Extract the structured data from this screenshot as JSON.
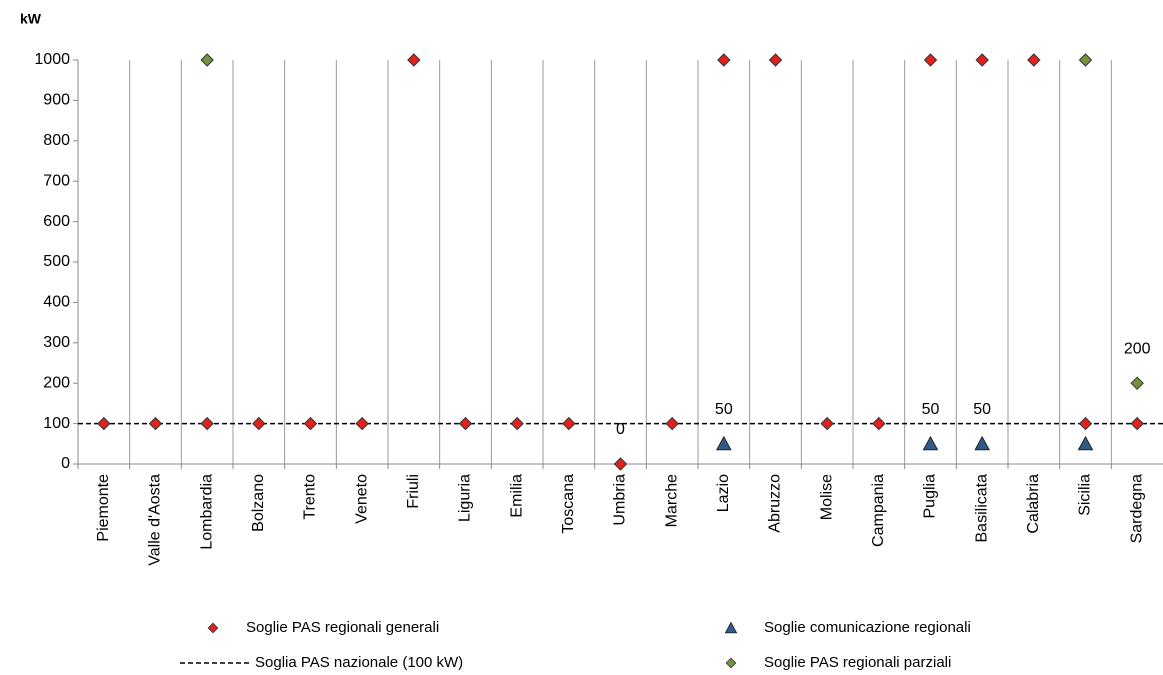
{
  "chart_data": {
    "type": "scatter",
    "y_axis_label": "kW",
    "categories": [
      "Piemonte",
      "Valle d'Aosta",
      "Lombardia",
      "Bolzano",
      "Trento",
      "Veneto",
      "Friuli",
      "Liguria",
      "Emilia",
      "Toscana",
      "Umbria",
      "Marche",
      "Lazio",
      "Abruzzo",
      "Molise",
      "Campania",
      "Puglia",
      "Basilicata",
      "Calabria",
      "Sicilia",
      "Sardegna"
    ],
    "series": [
      {
        "name": "Soglie PAS regionali generali",
        "marker": "diamond",
        "color": "#e3211c",
        "values": [
          100,
          100,
          100,
          100,
          100,
          100,
          1000,
          100,
          100,
          100,
          0,
          100,
          1000,
          1000,
          100,
          100,
          1000,
          1000,
          1000,
          100,
          100
        ],
        "labeled_indices": [
          10
        ]
      },
      {
        "name": "Soglie comunicazione regionali",
        "marker": "triangle",
        "color": "#2f5b8a",
        "values": [
          null,
          null,
          null,
          null,
          null,
          null,
          null,
          null,
          null,
          null,
          null,
          null,
          50,
          null,
          null,
          null,
          50,
          50,
          null,
          50,
          null
        ],
        "labeled_indices": [
          12,
          16,
          17
        ]
      },
      {
        "name": "Soglie PAS regionali parziali",
        "marker": "diamond",
        "color": "#77933c",
        "values": [
          null,
          null,
          1000,
          null,
          null,
          null,
          null,
          null,
          null,
          null,
          null,
          null,
          null,
          null,
          null,
          null,
          null,
          null,
          null,
          1000,
          200
        ],
        "labeled_indices": [
          20
        ]
      }
    ],
    "reference_line": {
      "name": "Soglia PAS  nazionale (100 kW)",
      "value": 100,
      "color": "#000"
    },
    "ylim": [
      0,
      1000
    ],
    "yticks": [
      0,
      100,
      200,
      300,
      400,
      500,
      600,
      700,
      800,
      900,
      1000
    ],
    "category_grid": true
  }
}
